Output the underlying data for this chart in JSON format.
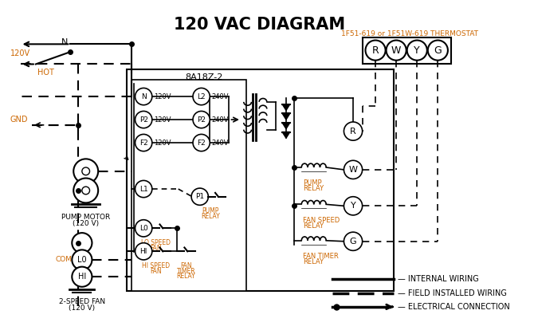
{
  "title": "120 VAC DIAGRAM",
  "title_fontsize": 15,
  "title_fontweight": "bold",
  "bg_color": "#ffffff",
  "line_color": "#000000",
  "orange_color": "#cc6600",
  "thermostat_label": "1F51-619 or 1F51W-619 THERMOSTAT",
  "controller_label": "8A18Z-2",
  "pump_motor_label1": "PUMP MOTOR",
  "pump_motor_label2": "(120 V)",
  "fan_label1": "2-SPEED FAN",
  "fan_label2": "(120 V)",
  "com_label": "COM",
  "gnd_label": "GND",
  "v120_label": "120V",
  "hot_label": "HOT",
  "n_label": "N",
  "legend1": "INTERNAL WIRING",
  "legend2": "FIELD INSTALLED WIRING",
  "legend3": "ELECTRICAL CONNECTION"
}
